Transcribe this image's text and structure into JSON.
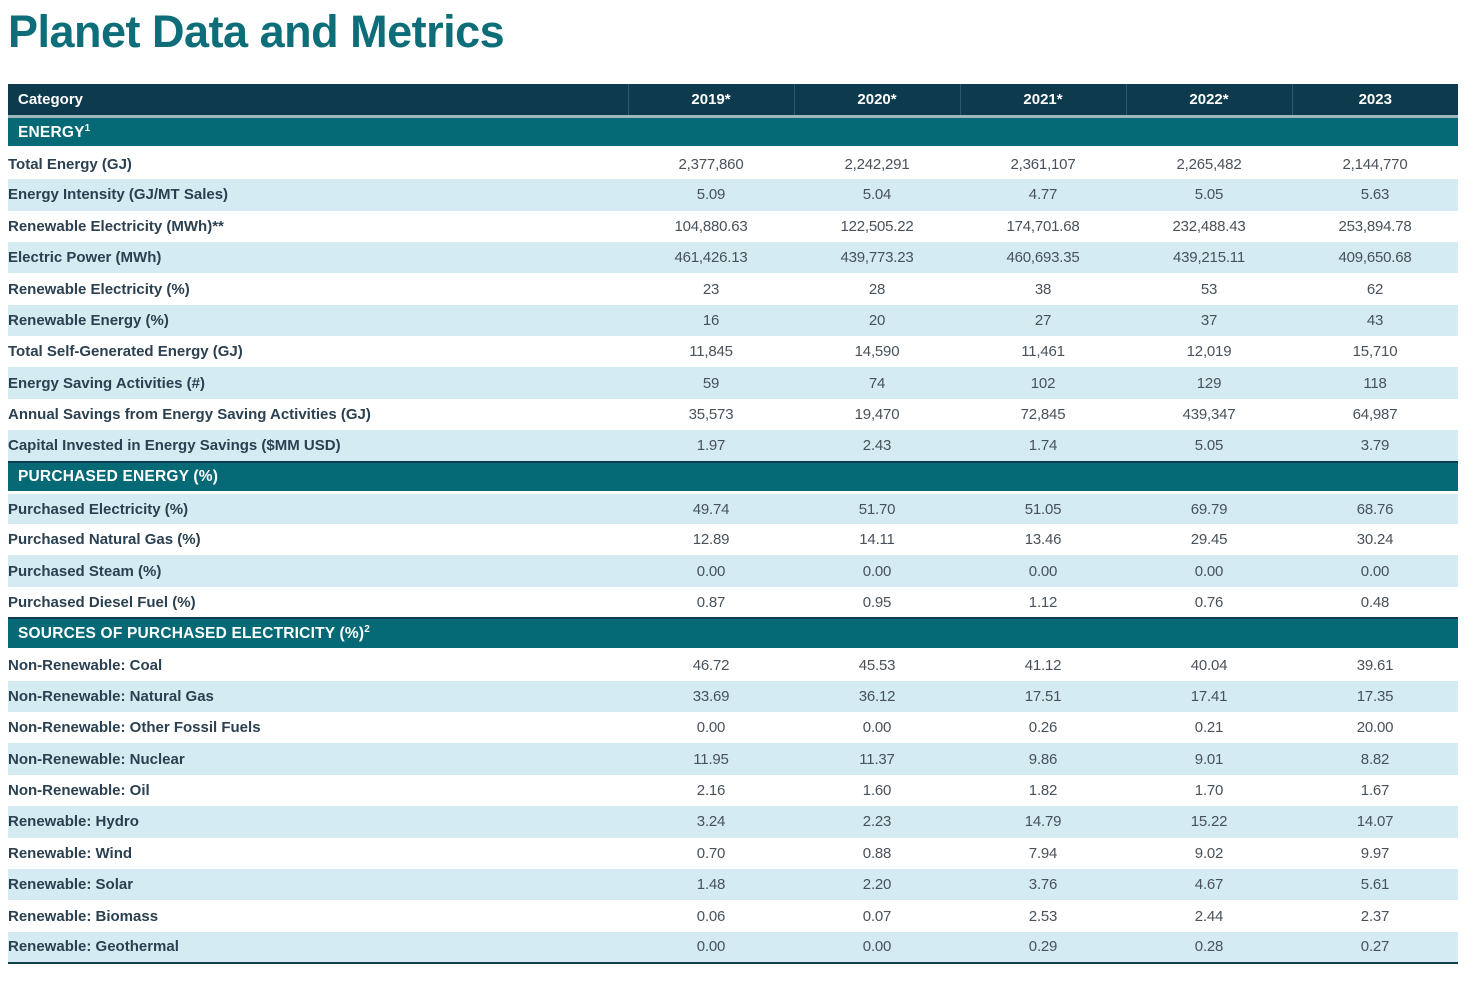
{
  "page": {
    "title": "Planet Data and Metrics"
  },
  "colors": {
    "title_teal": "#0d6e79",
    "header_navy": "#0e3a4d",
    "section_teal": "#066a76",
    "row_highlight_blue": "#d4ebf1",
    "label_text": "#2b4050",
    "value_text": "#48525b"
  },
  "table": {
    "header": {
      "category_label": "Category",
      "year_columns": [
        "2019*",
        "2020*",
        "2021*",
        "2022*",
        "2023"
      ]
    },
    "sections": [
      {
        "title": "ENERGY",
        "superscript": "1",
        "rows": [
          {
            "label": "Total Energy (GJ)",
            "values": [
              "2,377,860",
              "2,242,291",
              "2,361,107",
              "2,265,482",
              "2,144,770"
            ]
          },
          {
            "label": "Energy Intensity (GJ/MT Sales)",
            "values": [
              "5.09",
              "5.04",
              "4.77",
              "5.05",
              "5.63"
            ]
          },
          {
            "label": "Renewable Electricity (MWh)**",
            "values": [
              "104,880.63",
              "122,505.22",
              "174,701.68",
              "232,488.43",
              "253,894.78"
            ]
          },
          {
            "label": "Electric Power (MWh)",
            "values": [
              "461,426.13",
              "439,773.23",
              "460,693.35",
              "439,215.11",
              "409,650.68"
            ]
          },
          {
            "label": "Renewable Electricity (%)",
            "values": [
              "23",
              "28",
              "38",
              "53",
              "62"
            ]
          },
          {
            "label": "Renewable Energy (%)",
            "values": [
              "16",
              "20",
              "27",
              "37",
              "43"
            ]
          },
          {
            "label": "Total Self-Generated Energy (GJ)",
            "values": [
              "11,845",
              "14,590",
              "11,461",
              "12,019",
              "15,710"
            ]
          },
          {
            "label": "Energy Saving Activities (#)",
            "values": [
              "59",
              "74",
              "102",
              "129",
              "118"
            ]
          },
          {
            "label": "Annual Savings from Energy Saving Activities (GJ)",
            "values": [
              "35,573",
              "19,470",
              "72,845",
              "439,347",
              "64,987"
            ]
          },
          {
            "label": "Capital Invested in Energy Savings ($MM USD)",
            "values": [
              "1.97",
              "2.43",
              "1.74",
              "5.05",
              "3.79"
            ]
          }
        ]
      },
      {
        "title": "PURCHASED ENERGY (%)",
        "superscript": "",
        "rows": [
          {
            "label": "Purchased Electricity (%)",
            "values": [
              "49.74",
              "51.70",
              "51.05",
              "69.79",
              "68.76"
            ]
          },
          {
            "label": "Purchased Natural Gas (%)",
            "values": [
              "12.89",
              "14.11",
              "13.46",
              "29.45",
              "30.24"
            ]
          },
          {
            "label": "Purchased Steam (%)",
            "values": [
              "0.00",
              "0.00",
              "0.00",
              "0.00",
              "0.00"
            ]
          },
          {
            "label": "Purchased Diesel Fuel (%)",
            "values": [
              "0.87",
              "0.95",
              "1.12",
              "0.76",
              "0.48"
            ]
          }
        ]
      },
      {
        "title": "SOURCES OF PURCHASED ELECTRICITY (%)",
        "superscript": "2",
        "rows": [
          {
            "label": "Non-Renewable: Coal",
            "values": [
              "46.72",
              "45.53",
              "41.12",
              "40.04",
              "39.61"
            ]
          },
          {
            "label": "Non-Renewable: Natural Gas",
            "values": [
              "33.69",
              "36.12",
              "17.51",
              "17.41",
              "17.35"
            ]
          },
          {
            "label": "Non-Renewable: Other Fossil Fuels",
            "values": [
              "0.00",
              "0.00",
              "0.26",
              "0.21",
              "20.00"
            ]
          },
          {
            "label": "Non-Renewable: Nuclear",
            "values": [
              "11.95",
              "11.37",
              "9.86",
              "9.01",
              "8.82"
            ]
          },
          {
            "label": "Non-Renewable: Oil",
            "values": [
              "2.16",
              "1.60",
              "1.82",
              "1.70",
              "1.67"
            ]
          },
          {
            "label": "Renewable: Hydro",
            "values": [
              "3.24",
              "2.23",
              "14.79",
              "15.22",
              "14.07"
            ]
          },
          {
            "label": "Renewable: Wind",
            "values": [
              "0.70",
              "0.88",
              "7.94",
              "9.02",
              "9.97"
            ]
          },
          {
            "label": "Renewable: Solar",
            "values": [
              "1.48",
              "2.20",
              "3.76",
              "4.67",
              "5.61"
            ]
          },
          {
            "label": "Renewable: Biomass",
            "values": [
              "0.06",
              "0.07",
              "2.53",
              "2.44",
              "2.37"
            ]
          },
          {
            "label": "Renewable: Geothermal",
            "values": [
              "0.00",
              "0.00",
              "0.29",
              "0.28",
              "0.27"
            ]
          }
        ]
      }
    ]
  }
}
